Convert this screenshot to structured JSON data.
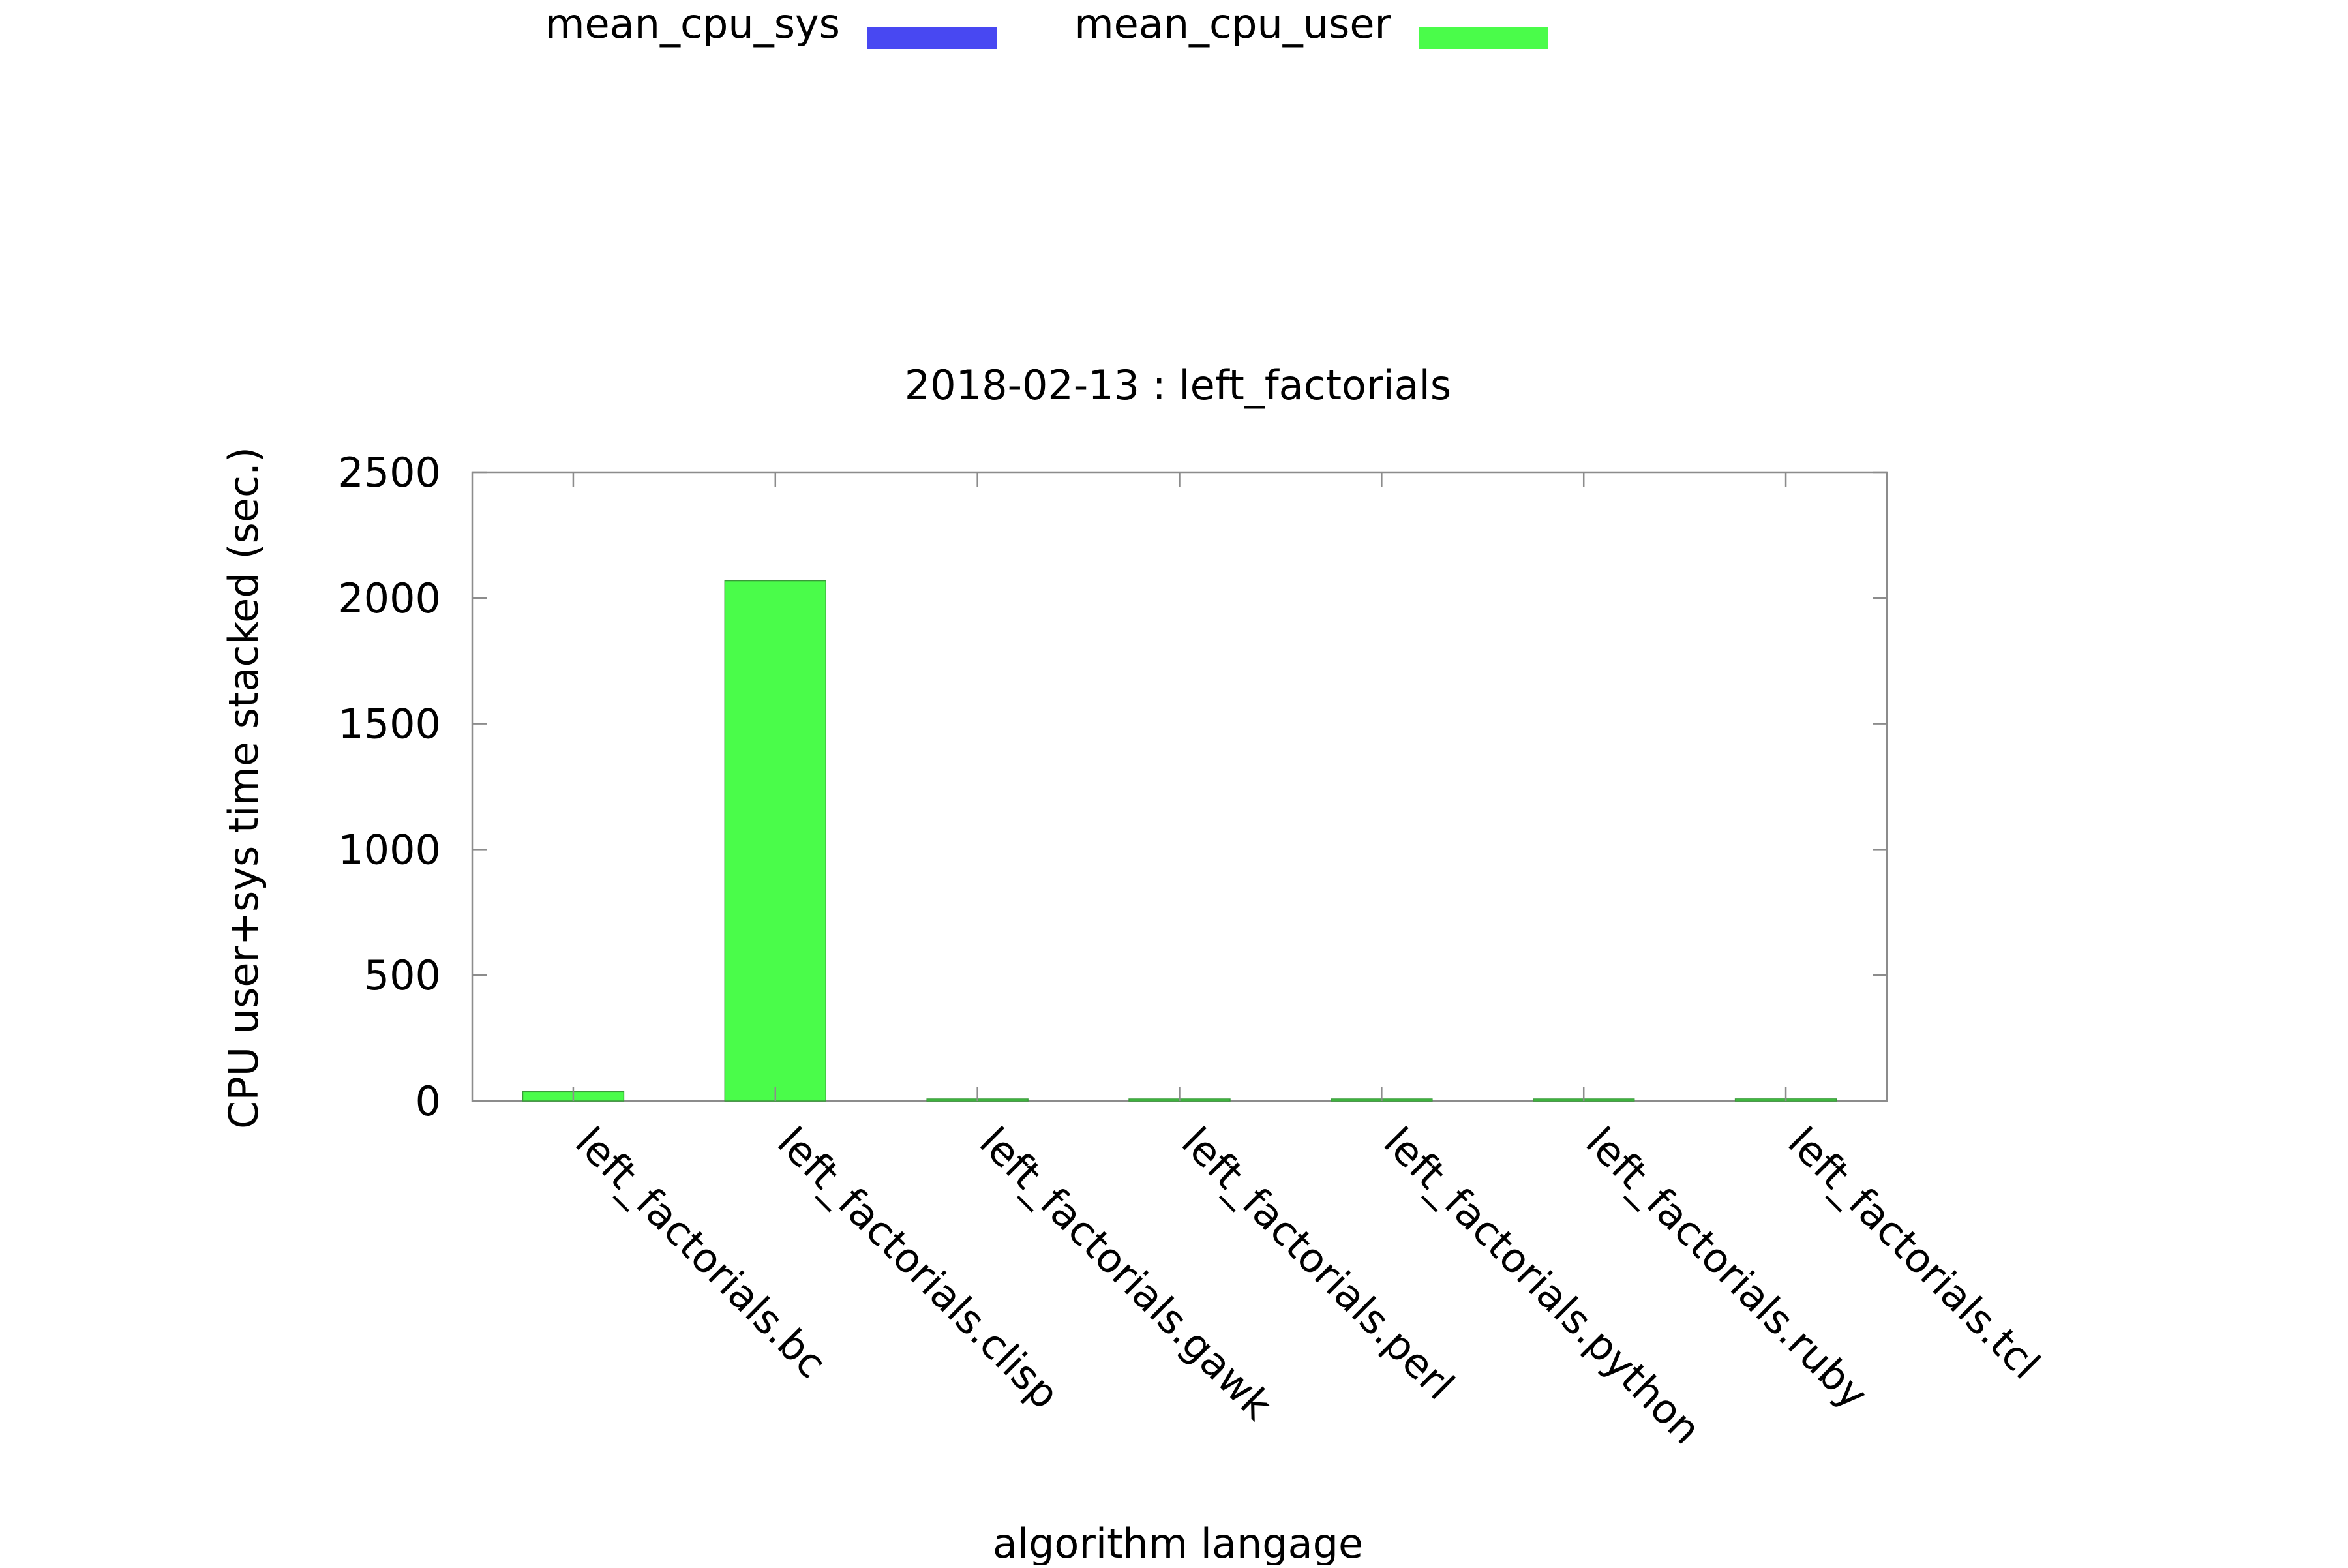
{
  "chart_data": {
    "type": "bar",
    "stacked": true,
    "title": "2018-02-13 : left_factorials",
    "xlabel": "algorithm langage",
    "ylabel": "CPU user+sys time stacked (sec.)",
    "ylim": [
      0,
      2500
    ],
    "yticks": [
      0,
      500,
      1000,
      1500,
      2000,
      2500
    ],
    "grid": false,
    "legend_position": "top",
    "categories": [
      "left_factorials.bc",
      "left_factorials.clisp",
      "left_factorials.gawk",
      "left_factorials.perl",
      "left_factorials.python",
      "left_factorials.ruby",
      "left_factorials.tcl"
    ],
    "series": [
      {
        "name": "mean_cpu_sys",
        "color": "#4848f2",
        "values": [
          0,
          0,
          0,
          0,
          0,
          0,
          0
        ]
      },
      {
        "name": "mean_cpu_user",
        "color": "#4afc4a",
        "values": [
          38,
          2068,
          1,
          4,
          1,
          1,
          8
        ]
      }
    ]
  }
}
